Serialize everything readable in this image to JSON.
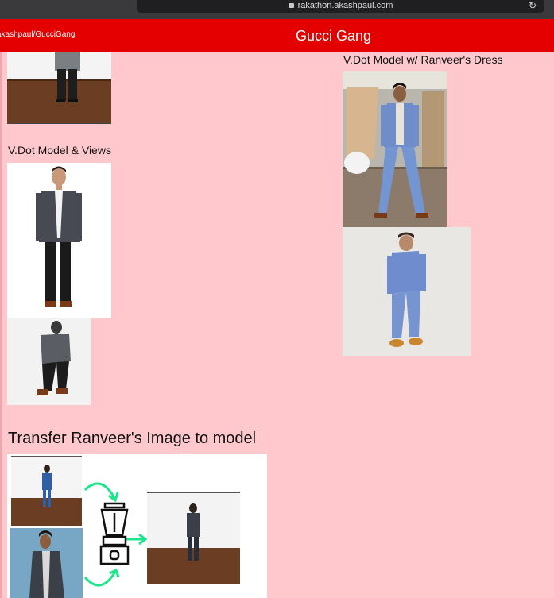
{
  "browser": {
    "url": "rakathon.akashpaul.com",
    "reload_icon": "reload-icon"
  },
  "navbar": {
    "repo_link": "akashpaul/GucciGang",
    "title": "Gucci Gang"
  },
  "sections": {
    "model_views": "V.Dot Model & Views",
    "ranveer_dress": "V.Dot Model w/ Ranveer's Dress",
    "transfer_heading": "Transfer Ranveer's Image to model"
  },
  "icons": {
    "blender": "blender-icon",
    "arrow": "arrow-icon"
  },
  "colors": {
    "navbar": "#e50000",
    "background": "#fec8cd",
    "arrows": "#1de58a"
  }
}
